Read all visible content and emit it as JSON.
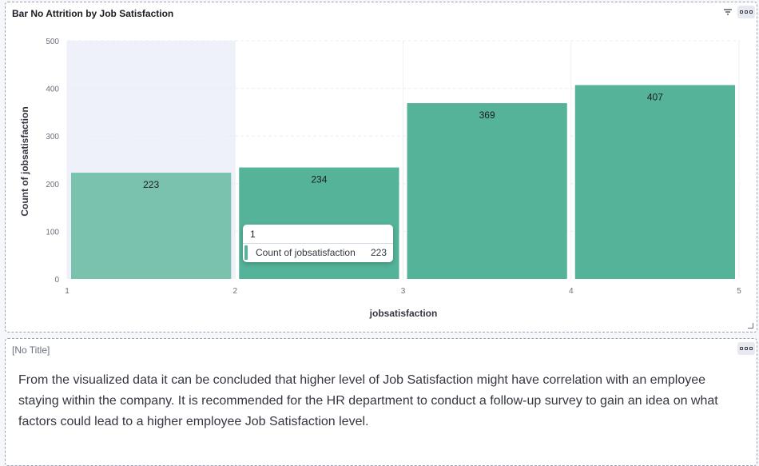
{
  "chart_panel": {
    "title": "Bar No Attrition by Job Satisfaction"
  },
  "chart_data": {
    "type": "bar",
    "title": "Bar No Attrition by Job Satisfaction",
    "xlabel": "jobsatisfaction",
    "ylabel": "Count of jobsatisfaction",
    "x_ticks": [
      "1",
      "2",
      "3",
      "4",
      "5"
    ],
    "y_ticks": [
      "0",
      "100",
      "200",
      "300",
      "400",
      "500"
    ],
    "ylim": [
      0,
      500
    ],
    "bins": [
      {
        "from": 1,
        "to": 2,
        "value": 223
      },
      {
        "from": 2,
        "to": 3,
        "value": 234
      },
      {
        "from": 3,
        "to": 4,
        "value": 369
      },
      {
        "from": 4,
        "to": 5,
        "value": 407
      }
    ],
    "highlighted_bin": 0,
    "grid": true,
    "colors": {
      "bar": "#54b399",
      "bar_hover": "#7ac2ad",
      "hover_band": "#eef1f9"
    }
  },
  "tooltip": {
    "header": "1",
    "series_label": "Count of jobsatisfaction",
    "value": "223"
  },
  "text_panel": {
    "title": "[No Title]",
    "body": "From the visualized data it can be concluded that higher level of Job Satisfaction might have correlation with an employee staying within the company. It is recommended for the HR department to conduct a follow-up survey to gain an idea on what factors could lead to a higher employee Job Satisfaction level."
  }
}
